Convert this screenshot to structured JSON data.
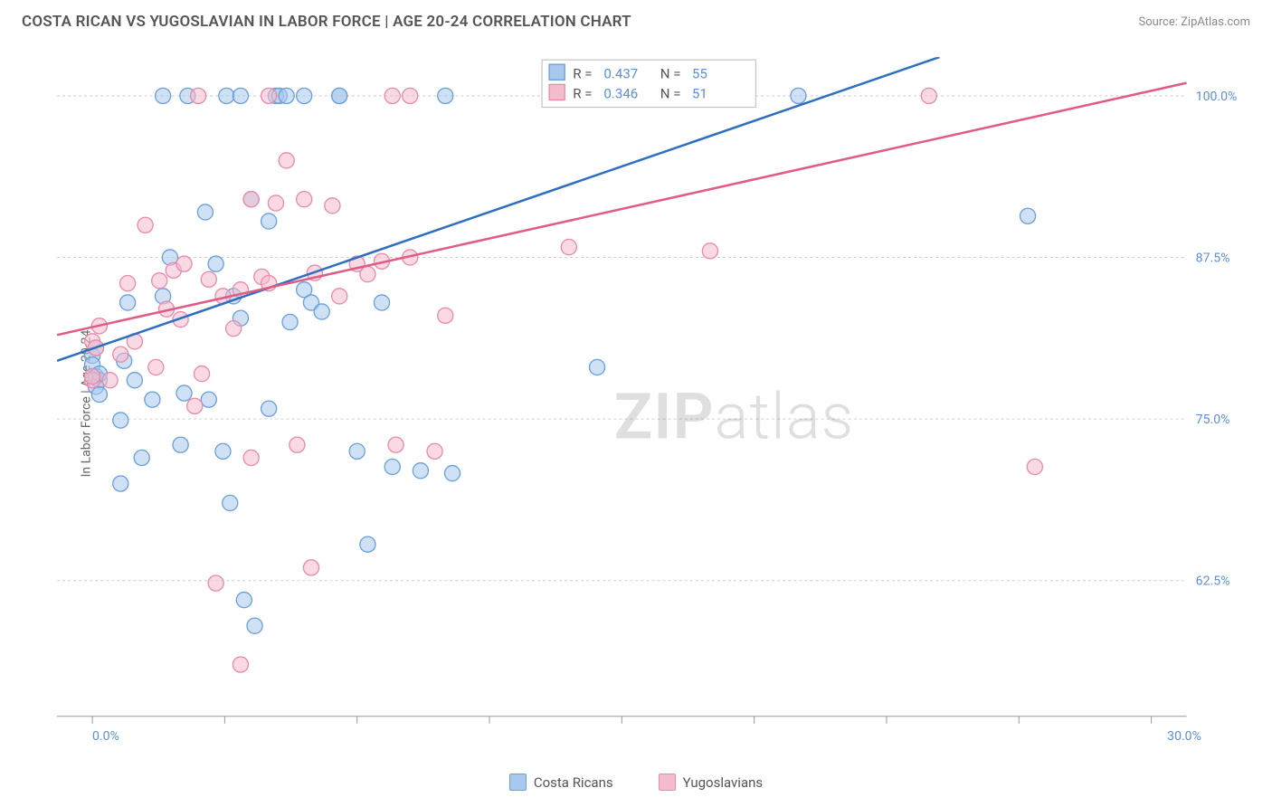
{
  "title": "COSTA RICAN VS YUGOSLAVIAN IN LABOR FORCE | AGE 20-24 CORRELATION CHART",
  "source": "Source: ZipAtlas.com",
  "ylabel": "In Labor Force | Age 20-24",
  "watermark_part1": "ZIP",
  "watermark_part2": "atlas",
  "chart": {
    "type": "scatter",
    "background_color": "#ffffff",
    "grid_color": "#d0d0d0",
    "axis_color": "#999999",
    "tick_label_color": "#5b8fd6",
    "x_domain": [
      -1,
      31
    ],
    "y_domain": [
      52,
      103
    ],
    "x_ticks": [
      0,
      3.75,
      7.5,
      11.25,
      15,
      18.75,
      22.5,
      26.25,
      30
    ],
    "x_tick_labels": {
      "0": "0.0%",
      "30": "30.0%"
    },
    "y_gridlines": [
      62.5,
      75.0,
      87.5,
      100.0
    ],
    "y_tick_labels": {
      "62.5": "62.5%",
      "75.0": "75.0%",
      "87.5": "87.5%",
      "100.0": "100.0%"
    },
    "marker_radius": 8.5,
    "marker_opacity": 0.55,
    "line_width": 2.5,
    "series": [
      {
        "name": "Costa Ricans",
        "fill": "#a8c8ed",
        "stroke": "#6a9fd8",
        "line_color": "#2f6fc0",
        "R": "0.437",
        "N": "55",
        "trend": {
          "x1": -1,
          "y1": 79.5,
          "x2": 24.0,
          "y2": 103
        },
        "points": [
          [
            0.0,
            79.9
          ],
          [
            0.0,
            79.2
          ],
          [
            0.1,
            78.3
          ],
          [
            0.1,
            77.5
          ],
          [
            0.1,
            80.5
          ],
          [
            0.2,
            78.0
          ],
          [
            0.2,
            78.5
          ],
          [
            0.2,
            76.9
          ],
          [
            0.8,
            74.9
          ],
          [
            0.8,
            70.0
          ],
          [
            0.9,
            79.5
          ],
          [
            1.0,
            84.0
          ],
          [
            1.2,
            78.0
          ],
          [
            1.4,
            72.0
          ],
          [
            1.7,
            76.5
          ],
          [
            2.0,
            100.0
          ],
          [
            2.0,
            84.5
          ],
          [
            2.2,
            87.5
          ],
          [
            2.5,
            73.0
          ],
          [
            2.6,
            77.0
          ],
          [
            2.7,
            100.0
          ],
          [
            3.2,
            91.0
          ],
          [
            3.3,
            76.5
          ],
          [
            3.5,
            87.0
          ],
          [
            3.7,
            72.5
          ],
          [
            3.8,
            100.0
          ],
          [
            3.9,
            68.5
          ],
          [
            4.0,
            84.5
          ],
          [
            4.2,
            100.0
          ],
          [
            4.2,
            82.8
          ],
          [
            4.3,
            61.0
          ],
          [
            4.5,
            92.0
          ],
          [
            4.6,
            59.0
          ],
          [
            5.0,
            75.8
          ],
          [
            5.0,
            90.3
          ],
          [
            5.2,
            100.0
          ],
          [
            5.3,
            100.0
          ],
          [
            5.6,
            82.5
          ],
          [
            6.0,
            100.0
          ],
          [
            6.0,
            85.0
          ],
          [
            6.2,
            84.0
          ],
          [
            6.5,
            83.3
          ],
          [
            7.0,
            100.0
          ],
          [
            7.0,
            100.0
          ],
          [
            7.5,
            72.5
          ],
          [
            7.8,
            65.3
          ],
          [
            8.2,
            84.0
          ],
          [
            8.5,
            71.3
          ],
          [
            9.3,
            71.0
          ],
          [
            10.0,
            100.0
          ],
          [
            10.2,
            70.8
          ],
          [
            14.3,
            79.0
          ],
          [
            20.0,
            100.0
          ],
          [
            26.5,
            90.7
          ],
          [
            5.5,
            100.0
          ]
        ]
      },
      {
        "name": "Yugoslavians",
        "fill": "#f4bccd",
        "stroke": "#e88aa8",
        "line_color": "#e05b86",
        "R": "0.346",
        "N": "51",
        "trend": {
          "x1": -1,
          "y1": 81.5,
          "x2": 31,
          "y2": 101.0
        },
        "points": [
          [
            0.0,
            81.0
          ],
          [
            0.0,
            78.0
          ],
          [
            0.0,
            78.3
          ],
          [
            0.1,
            80.5
          ],
          [
            0.2,
            82.2
          ],
          [
            0.5,
            78.0
          ],
          [
            0.8,
            80.0
          ],
          [
            1.0,
            85.5
          ],
          [
            1.2,
            81.0
          ],
          [
            1.5,
            90.0
          ],
          [
            1.8,
            79.0
          ],
          [
            1.9,
            85.7
          ],
          [
            2.1,
            83.5
          ],
          [
            2.3,
            86.5
          ],
          [
            2.5,
            82.7
          ],
          [
            2.6,
            87.0
          ],
          [
            2.9,
            76.0
          ],
          [
            3.0,
            100.0
          ],
          [
            3.1,
            78.5
          ],
          [
            3.3,
            85.8
          ],
          [
            3.5,
            62.3
          ],
          [
            3.7,
            84.5
          ],
          [
            4.0,
            82.0
          ],
          [
            4.2,
            56.0
          ],
          [
            4.2,
            85.0
          ],
          [
            4.5,
            92.0
          ],
          [
            4.5,
            72.0
          ],
          [
            4.8,
            86.0
          ],
          [
            5.0,
            85.5
          ],
          [
            5.2,
            91.7
          ],
          [
            5.5,
            95.0
          ],
          [
            5.8,
            73.0
          ],
          [
            6.0,
            92.0
          ],
          [
            6.2,
            63.5
          ],
          [
            6.3,
            86.3
          ],
          [
            6.8,
            91.5
          ],
          [
            7.0,
            84.5
          ],
          [
            7.5,
            87.0
          ],
          [
            7.8,
            86.2
          ],
          [
            8.2,
            87.2
          ],
          [
            8.5,
            100.0
          ],
          [
            8.6,
            73.0
          ],
          [
            9.0,
            100.0
          ],
          [
            9.0,
            87.5
          ],
          [
            9.7,
            72.5
          ],
          [
            10.0,
            83.0
          ],
          [
            13.5,
            88.3
          ],
          [
            17.5,
            88.0
          ],
          [
            23.7,
            100.0
          ],
          [
            26.7,
            71.3
          ],
          [
            5.0,
            100.0
          ]
        ]
      }
    ]
  },
  "legend": {
    "series1_label": "Costa Ricans",
    "series2_label": "Yugoslavians"
  },
  "statbox": {
    "R_label": "R =",
    "N_label": "N ="
  }
}
